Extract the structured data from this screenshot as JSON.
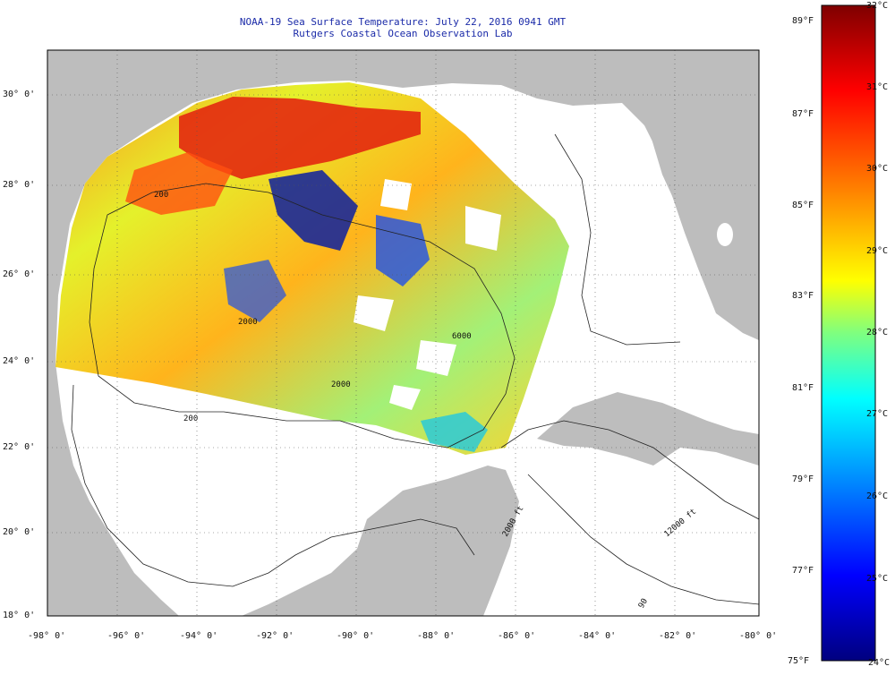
{
  "header": {
    "title": "NOAA-19 Sea Surface Temperature:  July 22, 2016 0941 GMT",
    "subtitle": "Rutgers Coastal Ocean Observation Lab"
  },
  "map": {
    "region": "Gulf of Mexico",
    "lon_range": [
      -98,
      -80
    ],
    "lat_range": [
      18,
      31
    ],
    "x_ticks": [
      "-98° 0'",
      "-96° 0'",
      "-94° 0'",
      "-92° 0'",
      "-90° 0'",
      "-88° 0'",
      "-86° 0'",
      "-84° 0'",
      "-82° 0'",
      "-80° 0'"
    ],
    "y_ticks": [
      "30° 0'",
      "28° 0'",
      "26° 0'",
      "24° 0'",
      "22° 0'",
      "20° 0'",
      "18° 0'"
    ],
    "contour_labels": [
      "200",
      "2000",
      "2000",
      "6000",
      "200",
      "2000 ft",
      "12000 ft",
      "90"
    ],
    "colors": {
      "land": "#bdbdbd",
      "ocean_nodata": "#ffffff",
      "warm": "#e32810",
      "cool": "#0c1ea0"
    }
  },
  "colorbar": {
    "min_c": 24,
    "max_c": 32,
    "fahrenheit_labels": [
      "89°F",
      "87°F",
      "85°F",
      "83°F",
      "81°F",
      "79°F",
      "77°F",
      "75°F"
    ],
    "celsius_labels": [
      "32°C",
      "31°C",
      "30°C",
      "29°C",
      "28°C",
      "27°C",
      "26°C",
      "25°C",
      "24°C"
    ],
    "stops": [
      "#00007f",
      "#0000ff",
      "#00bfff",
      "#00ffff",
      "#7fff7f",
      "#ffff00",
      "#ff8000",
      "#ff0000",
      "#7f0000"
    ]
  }
}
